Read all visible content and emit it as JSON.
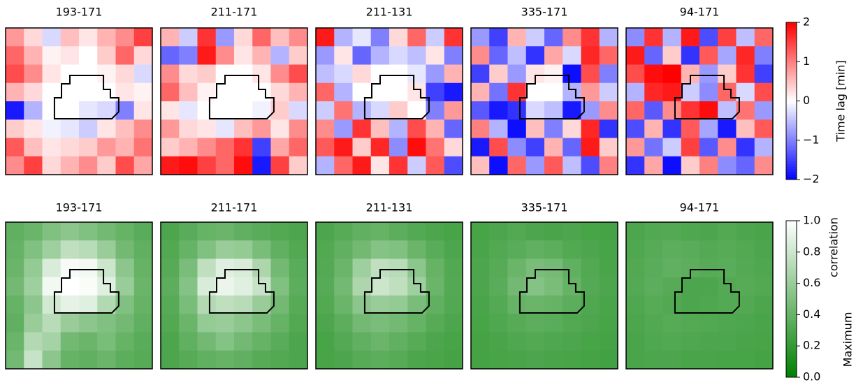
{
  "chart_data": [
    {
      "type": "heatmap",
      "colormap": [
        "#0000ff",
        "#ffffff",
        "#ff0000"
      ],
      "zlim": [
        -2,
        2
      ],
      "zticks": [
        {
          "value": -2,
          "label": "−2"
        },
        {
          "value": -1,
          "label": "−1"
        },
        0,
        1,
        2
      ],
      "zlabel": [
        "Time lag [min]"
      ],
      "panels": [
        {
          "title": "193-171",
          "values": [
            [
              0.8,
              0.3,
              -0.3,
              0.5,
              0.2,
              0.6,
              0.9,
              1.5
            ],
            [
              1.2,
              0.6,
              0.1,
              0.2,
              0.0,
              0.4,
              1.2,
              0.3
            ],
            [
              1.4,
              0.9,
              0.2,
              0.0,
              0.0,
              0.1,
              0.3,
              -0.3
            ],
            [
              0.6,
              0.3,
              0.0,
              0.0,
              0.0,
              0.0,
              0.2,
              0.1
            ],
            [
              -1.8,
              -0.6,
              0.0,
              0.0,
              -0.2,
              -0.3,
              -1.0,
              0.2
            ],
            [
              0.4,
              0.2,
              -0.1,
              -0.2,
              -0.4,
              0.2,
              0.5,
              0.9
            ],
            [
              1.3,
              0.5,
              0.2,
              0.3,
              0.4,
              0.8,
              0.6,
              1.1
            ],
            [
              0.9,
              1.5,
              0.3,
              0.6,
              0.9,
              0.4,
              1.4,
              0.7
            ]
          ]
        },
        {
          "title": "211-171",
          "values": [
            [
              0.6,
              -0.4,
              1.6,
              -0.8,
              0.3,
              1.2,
              0.5,
              0.9
            ],
            [
              -1.2,
              -1.0,
              1.8,
              0.9,
              0.2,
              0.6,
              -0.6,
              0.4
            ],
            [
              0.9,
              0.3,
              0.4,
              0.0,
              0.0,
              0.2,
              0.9,
              1.4
            ],
            [
              1.2,
              0.5,
              0.1,
              0.0,
              0.0,
              0.0,
              0.3,
              0.6
            ],
            [
              0.2,
              -0.2,
              0.0,
              0.0,
              0.0,
              -0.1,
              0.4,
              -0.3
            ],
            [
              0.8,
              0.3,
              0.2,
              -0.2,
              0.5,
              0.8,
              0.2,
              0.9
            ],
            [
              0.4,
              0.6,
              0.9,
              1.2,
              1.6,
              -1.5,
              0.7,
              1.2
            ],
            [
              1.8,
              1.9,
              1.5,
              1.2,
              1.9,
              -1.8,
              1.5,
              0.4
            ]
          ]
        },
        {
          "title": "211-131",
          "values": [
            [
              1.8,
              -0.6,
              -0.2,
              -1.0,
              0.3,
              1.2,
              -0.4,
              1.6
            ],
            [
              -0.8,
              0.2,
              -1.2,
              -0.6,
              -0.3,
              -0.5,
              0.2,
              -1.0
            ],
            [
              -0.5,
              -0.3,
              0.3,
              0.0,
              0.0,
              -0.2,
              -0.8,
              0.6
            ],
            [
              1.2,
              -0.6,
              0.0,
              0.0,
              0.0,
              0.2,
              -1.5,
              -1.8
            ],
            [
              -0.4,
              1.1,
              -0.6,
              -0.3,
              0.4,
              0.0,
              -1.0,
              0.8
            ],
            [
              0.9,
              -0.8,
              1.6,
              0.5,
              -0.6,
              1.4,
              0.6,
              -1.2
            ],
            [
              1.3,
              1.8,
              0.4,
              1.7,
              -0.9,
              1.9,
              1.1,
              0.3
            ],
            [
              -0.6,
              1.2,
              1.8,
              0.2,
              1.6,
              -0.4,
              1.3,
              -1.4
            ]
          ]
        },
        {
          "title": "335-171",
          "values": [
            [
              -0.8,
              -1.5,
              0.6,
              -0.4,
              -1.2,
              0.9,
              1.6,
              -0.6
            ],
            [
              0.9,
              -1.2,
              -0.5,
              -1.6,
              0.7,
              -0.3,
              1.7,
              1.2
            ],
            [
              -1.5,
              0.4,
              -0.8,
              0.2,
              0.1,
              -1.9,
              1.4,
              -1.0
            ],
            [
              0.6,
              -1.1,
              1.6,
              0.0,
              0.0,
              -0.6,
              0.8,
              -0.4
            ],
            [
              -1.3,
              -1.8,
              -1.6,
              -0.3,
              -0.5,
              -1.8,
              -0.8,
              0.9
            ],
            [
              1.0,
              -0.6,
              -1.9,
              0.5,
              -1.0,
              0.3,
              1.7,
              -1.6
            ],
            [
              -1.8,
              1.4,
              -0.9,
              -1.5,
              0.6,
              -1.2,
              1.8,
              0.4
            ],
            [
              0.5,
              -1.9,
              1.2,
              -0.8,
              1.3,
              -0.5,
              -1.4,
              1.0
            ]
          ]
        },
        {
          "title": "94-171",
          "values": [
            [
              -0.9,
              1.6,
              -0.6,
              1.8,
              -1.4,
              1.5,
              -0.5,
              1.2
            ],
            [
              1.8,
              -1.2,
              0.4,
              -1.6,
              1.3,
              -0.7,
              1.7,
              -1.0
            ],
            [
              1.4,
              1.9,
              2.0,
              0.6,
              -0.8,
              0.4,
              1.6,
              -1.5
            ],
            [
              -0.6,
              1.7,
              1.8,
              -0.4,
              -0.9,
              1.2,
              -0.3,
              1.4
            ],
            [
              1.2,
              -1.3,
              0.9,
              1.6,
              1.9,
              -0.5,
              1.1,
              -0.8
            ],
            [
              -1.4,
              0.6,
              -1.6,
              1.3,
              -0.7,
              -1.8,
              0.5,
              1.3
            ],
            [
              0.8,
              -1.1,
              -0.4,
              1.5,
              -1.3,
              0.9,
              -1.6,
              -0.6
            ],
            [
              -1.6,
              0.7,
              -1.9,
              0.4,
              1.0,
              -0.9,
              -1.2,
              0.9
            ]
          ]
        }
      ]
    },
    {
      "type": "heatmap",
      "colormap": [
        "#008000",
        "#ffffff"
      ],
      "zlim": [
        0,
        1
      ],
      "zticks": [
        {
          "value": 0,
          "label": "0.0"
        },
        {
          "value": 0.2,
          "label": "0.2"
        },
        {
          "value": 0.4,
          "label": "0.4"
        },
        {
          "value": 0.6,
          "label": "0.6"
        },
        {
          "value": 0.8,
          "label": "0.8"
        },
        {
          "value": 1,
          "label": "1.0"
        }
      ],
      "zlabel": [
        "Maximum",
        "correlation"
      ],
      "panels": [
        {
          "title": "193-171",
          "values": [
            [
              0.38,
              0.42,
              0.5,
              0.55,
              0.5,
              0.45,
              0.4,
              0.35
            ],
            [
              0.4,
              0.5,
              0.62,
              0.75,
              0.72,
              0.6,
              0.45,
              0.38
            ],
            [
              0.42,
              0.58,
              0.85,
              0.97,
              0.95,
              0.8,
              0.55,
              0.4
            ],
            [
              0.45,
              0.62,
              0.95,
              1.0,
              0.98,
              0.88,
              0.6,
              0.42
            ],
            [
              0.4,
              0.55,
              0.82,
              0.9,
              0.88,
              0.7,
              0.5,
              0.4
            ],
            [
              0.38,
              0.6,
              0.72,
              0.6,
              0.55,
              0.5,
              0.45,
              0.38
            ],
            [
              0.42,
              0.7,
              0.65,
              0.45,
              0.42,
              0.48,
              0.4,
              0.35
            ],
            [
              0.45,
              0.78,
              0.55,
              0.4,
              0.38,
              0.42,
              0.36,
              0.34
            ]
          ]
        },
        {
          "title": "211-171",
          "values": [
            [
              0.3,
              0.35,
              0.4,
              0.42,
              0.38,
              0.35,
              0.32,
              0.3
            ],
            [
              0.32,
              0.4,
              0.5,
              0.6,
              0.58,
              0.48,
              0.38,
              0.32
            ],
            [
              0.34,
              0.48,
              0.75,
              0.88,
              0.85,
              0.68,
              0.45,
              0.35
            ],
            [
              0.36,
              0.52,
              0.85,
              0.92,
              0.88,
              0.78,
              0.5,
              0.36
            ],
            [
              0.34,
              0.48,
              0.7,
              0.75,
              0.72,
              0.6,
              0.45,
              0.34
            ],
            [
              0.32,
              0.42,
              0.58,
              0.6,
              0.55,
              0.48,
              0.4,
              0.32
            ],
            [
              0.3,
              0.38,
              0.45,
              0.52,
              0.45,
              0.4,
              0.35,
              0.3
            ],
            [
              0.3,
              0.34,
              0.38,
              0.4,
              0.38,
              0.34,
              0.32,
              0.3
            ]
          ]
        },
        {
          "title": "211-131",
          "values": [
            [
              0.3,
              0.34,
              0.38,
              0.4,
              0.36,
              0.33,
              0.3,
              0.28
            ],
            [
              0.32,
              0.38,
              0.45,
              0.52,
              0.5,
              0.42,
              0.35,
              0.3
            ],
            [
              0.33,
              0.42,
              0.62,
              0.75,
              0.72,
              0.55,
              0.4,
              0.32
            ],
            [
              0.34,
              0.45,
              0.68,
              0.8,
              0.75,
              0.62,
              0.42,
              0.33
            ],
            [
              0.32,
              0.42,
              0.55,
              0.6,
              0.58,
              0.48,
              0.38,
              0.32
            ],
            [
              0.3,
              0.36,
              0.45,
              0.48,
              0.45,
              0.4,
              0.34,
              0.3
            ],
            [
              0.28,
              0.33,
              0.38,
              0.42,
              0.38,
              0.34,
              0.3,
              0.28
            ],
            [
              0.28,
              0.3,
              0.34,
              0.36,
              0.34,
              0.3,
              0.29,
              0.27
            ]
          ]
        },
        {
          "title": "335-171",
          "values": [
            [
              0.28,
              0.3,
              0.32,
              0.3,
              0.29,
              0.3,
              0.28,
              0.27
            ],
            [
              0.29,
              0.32,
              0.35,
              0.38,
              0.36,
              0.32,
              0.3,
              0.28
            ],
            [
              0.3,
              0.34,
              0.42,
              0.48,
              0.46,
              0.38,
              0.32,
              0.29
            ],
            [
              0.3,
              0.35,
              0.45,
              0.52,
              0.48,
              0.4,
              0.33,
              0.3
            ],
            [
              0.29,
              0.33,
              0.4,
              0.42,
              0.4,
              0.36,
              0.31,
              0.29
            ],
            [
              0.28,
              0.31,
              0.34,
              0.36,
              0.35,
              0.32,
              0.3,
              0.28
            ],
            [
              0.27,
              0.29,
              0.31,
              0.32,
              0.31,
              0.3,
              0.28,
              0.27
            ],
            [
              0.27,
              0.28,
              0.29,
              0.3,
              0.29,
              0.28,
              0.27,
              0.26
            ]
          ]
        },
        {
          "title": "94-171",
          "values": [
            [
              0.3,
              0.32,
              0.33,
              0.31,
              0.3,
              0.32,
              0.3,
              0.29
            ],
            [
              0.31,
              0.34,
              0.36,
              0.35,
              0.33,
              0.34,
              0.32,
              0.3
            ],
            [
              0.32,
              0.35,
              0.38,
              0.36,
              0.34,
              0.35,
              0.33,
              0.31
            ],
            [
              0.33,
              0.36,
              0.34,
              0.3,
              0.3,
              0.33,
              0.34,
              0.32
            ],
            [
              0.31,
              0.34,
              0.32,
              0.3,
              0.31,
              0.33,
              0.32,
              0.3
            ],
            [
              0.3,
              0.32,
              0.34,
              0.33,
              0.32,
              0.31,
              0.3,
              0.29
            ],
            [
              0.29,
              0.31,
              0.32,
              0.31,
              0.3,
              0.3,
              0.29,
              0.28
            ],
            [
              0.29,
              0.3,
              0.3,
              0.29,
              0.29,
              0.28,
              0.28,
              0.27
            ]
          ]
        }
      ]
    }
  ]
}
